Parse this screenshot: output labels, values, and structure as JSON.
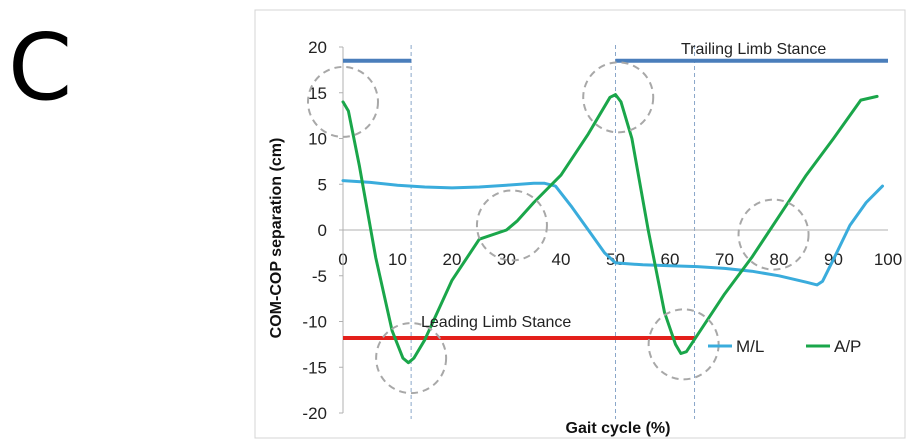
{
  "panel_label": "C",
  "chart_data": {
    "type": "line",
    "xlabel": "Gait cycle (%)",
    "ylabel": "COM-COP separation (cm)",
    "xlim": [
      0,
      100
    ],
    "ylim": [
      -20,
      20
    ],
    "xticks": [
      "0",
      "10",
      "20",
      "30",
      "40",
      "50",
      "60",
      "70",
      "80",
      "90",
      "100"
    ],
    "yticks": [
      "20",
      "15",
      "10",
      "5",
      "0",
      "-5",
      "-10",
      "-15",
      "-20"
    ],
    "legend_position": "lower-right",
    "series": [
      {
        "name": "M/L",
        "color": "#3aacdc",
        "points": [
          [
            0,
            5.4
          ],
          [
            5,
            5.2
          ],
          [
            10,
            4.9
          ],
          [
            15,
            4.7
          ],
          [
            20,
            4.6
          ],
          [
            25,
            4.7
          ],
          [
            30,
            4.9
          ],
          [
            35,
            5.1
          ],
          [
            37,
            5.1
          ],
          [
            39,
            4.8
          ],
          [
            42,
            2.5
          ],
          [
            45,
            0
          ],
          [
            48,
            -2.5
          ],
          [
            50,
            -3.6
          ],
          [
            55,
            -3.8
          ],
          [
            60,
            -3.9
          ],
          [
            65,
            -4
          ],
          [
            70,
            -4.2
          ],
          [
            75,
            -4.5
          ],
          [
            80,
            -5
          ],
          [
            85,
            -5.7
          ],
          [
            87,
            -6
          ],
          [
            88,
            -5.6
          ],
          [
            90,
            -3.2
          ],
          [
            93,
            0.5
          ],
          [
            96,
            3
          ],
          [
            99,
            4.8
          ]
        ]
      },
      {
        "name": "A/P",
        "color": "#1aa64a",
        "points": [
          [
            0,
            14
          ],
          [
            1,
            13
          ],
          [
            3,
            7
          ],
          [
            6,
            -3
          ],
          [
            9,
            -11
          ],
          [
            11,
            -14
          ],
          [
            12,
            -14.5
          ],
          [
            13,
            -14
          ],
          [
            15,
            -12
          ],
          [
            20,
            -5.5
          ],
          [
            25,
            -1
          ],
          [
            30,
            0
          ],
          [
            32,
            1
          ],
          [
            35,
            3
          ],
          [
            40,
            6
          ],
          [
            45,
            10.5
          ],
          [
            49,
            14.5
          ],
          [
            50,
            14.8
          ],
          [
            51,
            14
          ],
          [
            53,
            10
          ],
          [
            56,
            0
          ],
          [
            59,
            -9
          ],
          [
            61,
            -12.5
          ],
          [
            62,
            -13.5
          ],
          [
            63,
            -13.3
          ],
          [
            65,
            -11.5
          ],
          [
            70,
            -7
          ],
          [
            75,
            -3
          ],
          [
            80,
            1.5
          ],
          [
            85,
            6
          ],
          [
            90,
            10
          ],
          [
            95,
            14.2
          ],
          [
            98,
            14.6
          ]
        ]
      }
    ],
    "annotations": {
      "trailing_label": "Trailing Limb Stance",
      "leading_label": "Leading Limb Stance",
      "trailing_bars": [
        [
          0,
          12.5
        ],
        [
          50,
          100
        ]
      ],
      "trailing_y": 18.5,
      "trailing_color": "#4a7ebb",
      "leading_bar": [
        0,
        64.5
      ],
      "leading_y": -11.8,
      "leading_color": "#e3201b",
      "vertical_markers_x": [
        12.5,
        50,
        64.5
      ],
      "event_circles": [
        [
          0,
          14
        ],
        [
          12.5,
          -14
        ],
        [
          31,
          0.5
        ],
        [
          50.5,
          14.5
        ],
        [
          62.5,
          -12.5
        ],
        [
          79,
          -0.5
        ]
      ]
    }
  }
}
